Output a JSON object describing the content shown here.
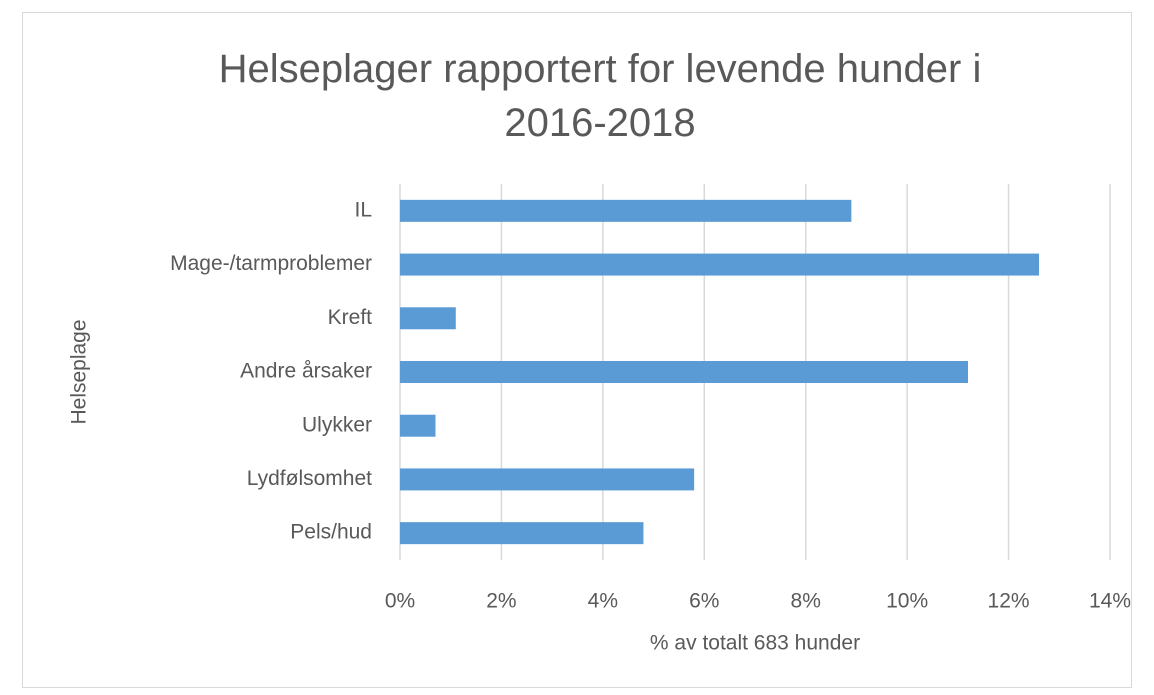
{
  "chart_data": {
    "type": "bar",
    "orientation": "horizontal",
    "title": "Helseplager rapportert for levende hunder i 2016-2018",
    "x_label": "% av totalt 683 hunder",
    "y_label": "Helseplage",
    "categories": [
      "IL",
      "Mage-/tarmproblemer",
      "Kreft",
      "Andre årsaker",
      "Ulykker",
      "Lydfølsomhet",
      "Pels/hud"
    ],
    "values": [
      8.9,
      12.6,
      1.1,
      11.2,
      0.7,
      5.8,
      4.8
    ],
    "color": "#5b9bd5",
    "xlim": [
      0,
      14
    ],
    "xticks": [
      {
        "value": 0,
        "label": "0%"
      },
      {
        "value": 2,
        "label": "2%"
      },
      {
        "value": 4,
        "label": "4%"
      },
      {
        "value": 6,
        "label": "6%"
      },
      {
        "value": 8,
        "label": "8%"
      },
      {
        "value": 10,
        "label": "10%"
      },
      {
        "value": 12,
        "label": "12%"
      },
      {
        "value": 14,
        "label": "14%"
      }
    ],
    "grid": true
  }
}
